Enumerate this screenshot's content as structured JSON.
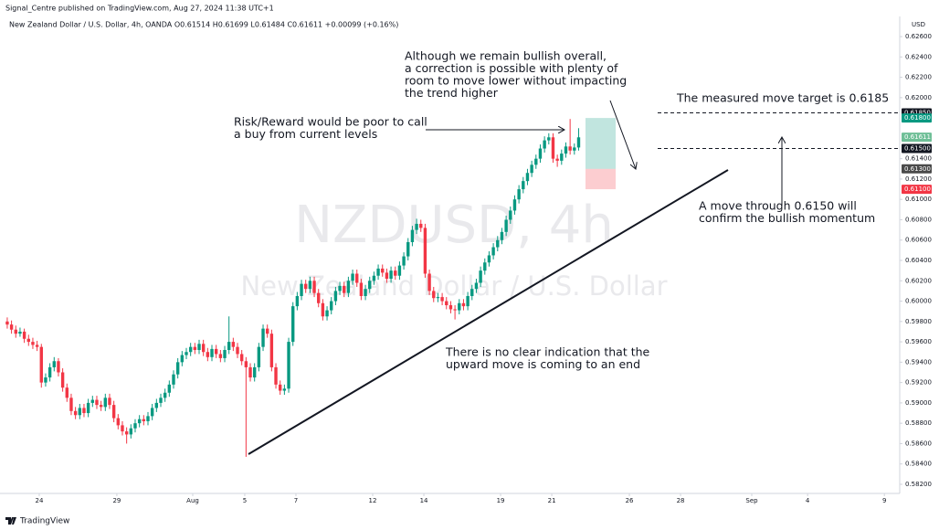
{
  "header": {
    "published": "Signal_Centre published on TradingView.com, Aug 27, 2024 11:38 UTC+1",
    "symbol_line": "New Zealand Dollar / U.S. Dollar, 4h, OANDA  O0.61514  H0.61699  L0.61484  C0.61611  +0.00099 (+0.16%)"
  },
  "footer": {
    "brand": "TradingView"
  },
  "chart_data": {
    "type": "candlestick",
    "watermark_title": "NZDUSD, 4h",
    "watermark_subtitle": "New Zealand Dollar / U.S. Dollar",
    "axis_unit": "USD",
    "up_color": "#089981",
    "down_color": "#f23645",
    "xlim": [
      -1.7,
      209.3
    ],
    "xticks": [
      {
        "value": 7.5,
        "label": "24"
      },
      {
        "value": 25.7,
        "label": "29"
      },
      {
        "value": 43.5,
        "label": "Aug"
      },
      {
        "value": 55.7,
        "label": "5"
      },
      {
        "value": 67.7,
        "label": "7"
      },
      {
        "value": 85.7,
        "label": "12"
      },
      {
        "value": 97.7,
        "label": "14"
      },
      {
        "value": 115.7,
        "label": "19"
      },
      {
        "value": 127.7,
        "label": "21"
      },
      {
        "value": 145.9,
        "label": "26"
      },
      {
        "value": 157.9,
        "label": "28"
      },
      {
        "value": 174.6,
        "label": "Sep"
      },
      {
        "value": 187.7,
        "label": "4"
      },
      {
        "value": 205.7,
        "label": "9"
      }
    ],
    "ylim": [
      0.5811,
      0.6278
    ],
    "yticks": [
      {
        "value": 0.582,
        "label": "0.58200"
      },
      {
        "value": 0.584,
        "label": "0.58400"
      },
      {
        "value": 0.586,
        "label": "0.58600"
      },
      {
        "value": 0.588,
        "label": "0.58800"
      },
      {
        "value": 0.59,
        "label": "0.59000"
      },
      {
        "value": 0.592,
        "label": "0.59200"
      },
      {
        "value": 0.594,
        "label": "0.59400"
      },
      {
        "value": 0.596,
        "label": "0.59600"
      },
      {
        "value": 0.598,
        "label": "0.59800"
      },
      {
        "value": 0.6,
        "label": "0.60000"
      },
      {
        "value": 0.602,
        "label": "0.60200"
      },
      {
        "value": 0.604,
        "label": "0.60400"
      },
      {
        "value": 0.606,
        "label": "0.60600"
      },
      {
        "value": 0.608,
        "label": "0.60800"
      },
      {
        "value": 0.61,
        "label": "0.61000"
      },
      {
        "value": 0.612,
        "label": "0.61200"
      },
      {
        "value": 0.614,
        "label": "0.61400"
      },
      {
        "value": 0.62,
        "label": "0.62000"
      },
      {
        "value": 0.622,
        "label": "0.62200"
      },
      {
        "value": 0.624,
        "label": "0.62400"
      },
      {
        "value": 0.626,
        "label": "0.62600"
      }
    ],
    "price_labels": [
      {
        "value": 0.6185,
        "label": "0.61850",
        "color": "#131722"
      },
      {
        "value": 0.618,
        "label": "0.61800",
        "color": "#089981"
      },
      {
        "value": 0.61611,
        "label": "0.61611",
        "color": "#6fbf97"
      },
      {
        "value": 0.615,
        "label": "0.61500",
        "color": "#131722"
      },
      {
        "value": 0.613,
        "label": "0.61300",
        "color": "#4a4a4a"
      },
      {
        "value": 0.611,
        "label": "0.61100",
        "color": "#f23645"
      }
    ],
    "annotations": [
      {
        "lines": [
          "Although we remain bullish overall,",
          "a correction is possible with plenty of",
          "room to move lower without impacting",
          "the trend higher"
        ]
      },
      {
        "lines": [
          "Risk/Reward would be poor to call",
          "a buy from current levels"
        ]
      },
      {
        "lines": [
          "The measured move target is 0.6185"
        ]
      },
      {
        "lines": [
          "A move through 0.6150 will",
          "confirm the bullish momentum"
        ]
      },
      {
        "lines": [
          "There is no clear indication that the",
          "upward move is coming to an end"
        ]
      }
    ],
    "ohlc": [
      [
        0.598,
        0.5984,
        0.5973,
        0.5977
      ],
      [
        0.5977,
        0.5981,
        0.5968,
        0.5972
      ],
      [
        0.5972,
        0.5976,
        0.5964,
        0.5968
      ],
      [
        0.5968,
        0.5974,
        0.5965,
        0.597
      ],
      [
        0.597,
        0.5973,
        0.5959,
        0.5963
      ],
      [
        0.5963,
        0.5967,
        0.5956,
        0.596
      ],
      [
        0.596,
        0.5964,
        0.5953,
        0.5957
      ],
      [
        0.5957,
        0.5961,
        0.5951,
        0.5955
      ],
      [
        0.5955,
        0.5958,
        0.5915,
        0.592
      ],
      [
        0.592,
        0.5929,
        0.5916,
        0.5925
      ],
      [
        0.5925,
        0.5939,
        0.5921,
        0.5935
      ],
      [
        0.5935,
        0.5945,
        0.5931,
        0.5941
      ],
      [
        0.5941,
        0.5944,
        0.5926,
        0.593
      ],
      [
        0.593,
        0.5934,
        0.5911,
        0.5915
      ],
      [
        0.5915,
        0.5919,
        0.5901,
        0.5905
      ],
      [
        0.5905,
        0.5909,
        0.5888,
        0.5892
      ],
      [
        0.5892,
        0.5896,
        0.5884,
        0.5888
      ],
      [
        0.5888,
        0.5899,
        0.5884,
        0.5895
      ],
      [
        0.5895,
        0.5899,
        0.5886,
        0.589
      ],
      [
        0.589,
        0.5904,
        0.5886,
        0.59
      ],
      [
        0.59,
        0.5907,
        0.5896,
        0.5903
      ],
      [
        0.5903,
        0.5907,
        0.5894,
        0.5898
      ],
      [
        0.5898,
        0.5902,
        0.5892,
        0.5896
      ],
      [
        0.5896,
        0.5909,
        0.5892,
        0.5905
      ],
      [
        0.5905,
        0.5909,
        0.5894,
        0.5898
      ],
      [
        0.5898,
        0.5902,
        0.5881,
        0.5885
      ],
      [
        0.5885,
        0.5889,
        0.5874,
        0.5878
      ],
      [
        0.5878,
        0.5882,
        0.5868,
        0.5872
      ],
      [
        0.5872,
        0.5876,
        0.586,
        0.5869
      ],
      [
        0.5869,
        0.5879,
        0.5865,
        0.5875
      ],
      [
        0.5875,
        0.5884,
        0.5871,
        0.588
      ],
      [
        0.588,
        0.5888,
        0.5876,
        0.5884
      ],
      [
        0.5884,
        0.5888,
        0.5878,
        0.5882
      ],
      [
        0.5882,
        0.5891,
        0.5878,
        0.5887
      ],
      [
        0.5887,
        0.5899,
        0.5883,
        0.5895
      ],
      [
        0.5895,
        0.5904,
        0.5891,
        0.59
      ],
      [
        0.59,
        0.5909,
        0.5896,
        0.5905
      ],
      [
        0.5905,
        0.5914,
        0.5901,
        0.591
      ],
      [
        0.591,
        0.5922,
        0.5906,
        0.5918
      ],
      [
        0.5918,
        0.5932,
        0.5914,
        0.5928
      ],
      [
        0.5928,
        0.5944,
        0.5924,
        0.594
      ],
      [
        0.594,
        0.5951,
        0.5936,
        0.5947
      ],
      [
        0.5947,
        0.5954,
        0.5943,
        0.595
      ],
      [
        0.595,
        0.5959,
        0.5946,
        0.5955
      ],
      [
        0.5955,
        0.5959,
        0.5948,
        0.5952
      ],
      [
        0.5952,
        0.5962,
        0.5948,
        0.5958
      ],
      [
        0.5958,
        0.5962,
        0.5946,
        0.595
      ],
      [
        0.595,
        0.5954,
        0.5941,
        0.5945
      ],
      [
        0.5945,
        0.5957,
        0.5941,
        0.5953
      ],
      [
        0.5953,
        0.5957,
        0.5944,
        0.5948
      ],
      [
        0.5948,
        0.5952,
        0.594,
        0.5944
      ],
      [
        0.5944,
        0.5956,
        0.594,
        0.5952
      ],
      [
        0.5952,
        0.5985,
        0.5948,
        0.596
      ],
      [
        0.596,
        0.5964,
        0.5951,
        0.5955
      ],
      [
        0.5955,
        0.5959,
        0.5944,
        0.5948
      ],
      [
        0.5948,
        0.5952,
        0.5937,
        0.5941
      ],
      [
        0.5941,
        0.5945,
        0.5847,
        0.5935
      ],
      [
        0.5935,
        0.5939,
        0.5921,
        0.5925
      ],
      [
        0.5925,
        0.5939,
        0.5921,
        0.5935
      ],
      [
        0.5935,
        0.5959,
        0.5931,
        0.5955
      ],
      [
        0.5955,
        0.5977,
        0.5951,
        0.5973
      ],
      [
        0.5973,
        0.5977,
        0.5964,
        0.5968
      ],
      [
        0.5968,
        0.5972,
        0.5931,
        0.5935
      ],
      [
        0.5935,
        0.5939,
        0.5914,
        0.5918
      ],
      [
        0.5918,
        0.5922,
        0.5908,
        0.5912
      ],
      [
        0.5912,
        0.5918,
        0.5908,
        0.5914
      ],
      [
        0.5914,
        0.5964,
        0.591,
        0.596
      ],
      [
        0.596,
        0.5999,
        0.5956,
        0.5995
      ],
      [
        0.5995,
        0.6009,
        0.5991,
        0.6005
      ],
      [
        0.6005,
        0.6021,
        0.6001,
        0.6017
      ],
      [
        0.6017,
        0.6021,
        0.6008,
        0.6012
      ],
      [
        0.6012,
        0.6024,
        0.6008,
        0.602
      ],
      [
        0.602,
        0.6024,
        0.6004,
        0.6008
      ],
      [
        0.6008,
        0.6012,
        0.5994,
        0.5998
      ],
      [
        0.5998,
        0.6002,
        0.5981,
        0.5985
      ],
      [
        0.5985,
        0.5995,
        0.5981,
        0.5991
      ],
      [
        0.5991,
        0.6004,
        0.5987,
        0.6
      ],
      [
        0.6,
        0.6014,
        0.5996,
        0.601
      ],
      [
        0.601,
        0.6019,
        0.6006,
        0.6015
      ],
      [
        0.6015,
        0.6019,
        0.6004,
        0.6008
      ],
      [
        0.6008,
        0.6024,
        0.6004,
        0.602
      ],
      [
        0.602,
        0.6031,
        0.6016,
        0.6027
      ],
      [
        0.6027,
        0.6031,
        0.6014,
        0.6018
      ],
      [
        0.6018,
        0.6022,
        0.6001,
        0.6005
      ],
      [
        0.6005,
        0.6016,
        0.6001,
        0.6012
      ],
      [
        0.6012,
        0.6024,
        0.6008,
        0.602
      ],
      [
        0.602,
        0.6029,
        0.6016,
        0.6025
      ],
      [
        0.6025,
        0.6036,
        0.6021,
        0.6032
      ],
      [
        0.6032,
        0.6036,
        0.6024,
        0.6028
      ],
      [
        0.6028,
        0.6032,
        0.6018,
        0.6022
      ],
      [
        0.6022,
        0.6034,
        0.6018,
        0.603
      ],
      [
        0.603,
        0.6034,
        0.6021,
        0.6025
      ],
      [
        0.6025,
        0.6039,
        0.6021,
        0.6035
      ],
      [
        0.6035,
        0.6048,
        0.6031,
        0.6044
      ],
      [
        0.6044,
        0.6062,
        0.604,
        0.6058
      ],
      [
        0.6058,
        0.6074,
        0.6054,
        0.607
      ],
      [
        0.607,
        0.6081,
        0.6066,
        0.6076
      ],
      [
        0.6076,
        0.608,
        0.6068,
        0.6072
      ],
      [
        0.6072,
        0.6076,
        0.6023,
        0.6027
      ],
      [
        0.6027,
        0.6031,
        0.6006,
        0.601
      ],
      [
        0.601,
        0.6014,
        0.5999,
        0.6003
      ],
      [
        0.6003,
        0.6008,
        0.5999,
        0.6004
      ],
      [
        0.6004,
        0.6008,
        0.5996,
        0.6
      ],
      [
        0.6,
        0.6004,
        0.5992,
        0.5996
      ],
      [
        0.5996,
        0.6,
        0.5988,
        0.5992
      ],
      [
        0.5992,
        0.5996,
        0.5982,
        0.5991
      ],
      [
        0.5991,
        0.6002,
        0.5987,
        0.5998
      ],
      [
        0.5998,
        0.6002,
        0.5991,
        0.5995
      ],
      [
        0.5995,
        0.6009,
        0.5991,
        0.6005
      ],
      [
        0.6005,
        0.6016,
        0.6001,
        0.6012
      ],
      [
        0.6012,
        0.6022,
        0.6008,
        0.6018
      ],
      [
        0.6018,
        0.6034,
        0.6014,
        0.603
      ],
      [
        0.603,
        0.6042,
        0.6026,
        0.6038
      ],
      [
        0.6038,
        0.6049,
        0.6034,
        0.6045
      ],
      [
        0.6045,
        0.6057,
        0.6041,
        0.6053
      ],
      [
        0.6053,
        0.6064,
        0.6049,
        0.606
      ],
      [
        0.606,
        0.6072,
        0.6056,
        0.6068
      ],
      [
        0.6068,
        0.6084,
        0.6064,
        0.608
      ],
      [
        0.608,
        0.6093,
        0.6076,
        0.6089
      ],
      [
        0.6089,
        0.6104,
        0.6085,
        0.61
      ],
      [
        0.61,
        0.6114,
        0.6096,
        0.611
      ],
      [
        0.611,
        0.6122,
        0.6106,
        0.6118
      ],
      [
        0.6118,
        0.613,
        0.6114,
        0.6126
      ],
      [
        0.6126,
        0.6138,
        0.6122,
        0.6134
      ],
      [
        0.6134,
        0.6144,
        0.613,
        0.614
      ],
      [
        0.614,
        0.6154,
        0.6136,
        0.615
      ],
      [
        0.615,
        0.6162,
        0.6146,
        0.6158
      ],
      [
        0.6158,
        0.6165,
        0.6154,
        0.6161
      ],
      [
        0.6161,
        0.6165,
        0.6136,
        0.614
      ],
      [
        0.614,
        0.6144,
        0.6132,
        0.6138
      ],
      [
        0.6138,
        0.6149,
        0.6134,
        0.6145
      ],
      [
        0.6145,
        0.6156,
        0.6141,
        0.6152
      ],
      [
        0.6152,
        0.6179,
        0.6144,
        0.6148
      ],
      [
        0.6148,
        0.6155,
        0.6144,
        0.6151
      ],
      [
        0.6151,
        0.617,
        0.6148,
        0.6161
      ]
    ]
  }
}
